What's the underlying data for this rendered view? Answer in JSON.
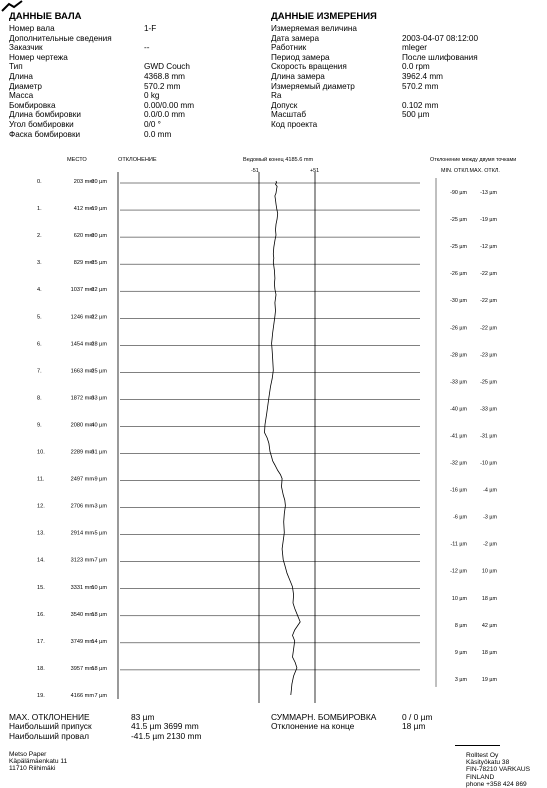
{
  "roll_data": {
    "title": "ДАННЫЕ ВАЛА",
    "rows": [
      {
        "label": "Номер вала",
        "value": "1-F"
      },
      {
        "label": "Дополнительные сведения",
        "value": ""
      },
      {
        "label": "Заказчик",
        "value": "--"
      },
      {
        "label": "Номер чертежа",
        "value": ""
      },
      {
        "label": "Тип",
        "value": "GWD Couch"
      },
      {
        "label": "Длина",
        "value": "4368.8 mm"
      },
      {
        "label": "Диаметр",
        "value": "570.2 mm"
      },
      {
        "label": "Масса",
        "value": "0 kg"
      },
      {
        "label": "Бомбировка",
        "value": "0.00/0.00 mm"
      },
      {
        "label": "Длина бомбировки",
        "value": "0.0/0.0 mm"
      },
      {
        "label": "Угол бомбировки",
        "value": "0/0 °"
      },
      {
        "label": "Фаска бомбировки",
        "value": "0.0 mm"
      }
    ]
  },
  "measurement_data": {
    "title": "ДАННЫЕ ИЗМЕРЕНИЯ",
    "rows": [
      {
        "label": "Измеряемая величина",
        "value": ""
      },
      {
        "label": "Дата замера",
        "value": "2003-04-07 08:12:00"
      },
      {
        "label": "Работник",
        "value": "mleger"
      },
      {
        "label": "Период замера",
        "value": "После шлифования"
      },
      {
        "label": "Скорость вращения",
        "value": "0.0 rpm"
      },
      {
        "label": "Длина замера",
        "value": "3962.4 mm"
      },
      {
        "label": "Измеряемый диаметр",
        "value": "570.2 mm"
      },
      {
        "label": "Ra",
        "value": ""
      },
      {
        "label": "Допуск",
        "value": "0.102 mm"
      },
      {
        "label": "Масштаб",
        "value": "500 µm"
      },
      {
        "label": "Код проекта",
        "value": ""
      }
    ]
  },
  "table_headers": {
    "place": "МЕСТО",
    "deviation": "ОТКЛОНЕНИЕ",
    "driven_end": "Ведомый конец 4185.6 mm",
    "diff_title": "Отклонение между двумя точками",
    "diff_cols": "MIN. ОТКЛ.MAX. ОТКЛ.",
    "marker_left": "-51",
    "marker_right": "+51"
  },
  "chart_data": {
    "type": "line",
    "title": "",
    "xlabel": "",
    "ylabel": "",
    "xlim": [
      -51,
      51
    ],
    "rows": [
      {
        "n": "0.",
        "pos": "203 mm",
        "dev": "-20 µm",
        "min": "-90 µm",
        "max": "-13 µm"
      },
      {
        "n": "1.",
        "pos": "412 mm",
        "dev": "-19 µm",
        "min": "-25 µm",
        "max": "-19 µm"
      },
      {
        "n": "2.",
        "pos": "620 mm",
        "dev": "-20 µm",
        "min": "-25 µm",
        "max": "-12 µm"
      },
      {
        "n": "3.",
        "pos": "829 mm",
        "dev": "-25 µm",
        "min": "-26 µm",
        "max": "-22 µm"
      },
      {
        "n": "4.",
        "pos": "1037 mm",
        "dev": "-22 µm",
        "min": "-30 µm",
        "max": "-22 µm"
      },
      {
        "n": "5.",
        "pos": "1246 mm",
        "dev": "-22 µm",
        "min": "-26 µm",
        "max": "-22 µm"
      },
      {
        "n": "6.",
        "pos": "1454 mm",
        "dev": "-28 µm",
        "min": "-28 µm",
        "max": "-23 µm"
      },
      {
        "n": "7.",
        "pos": "1663 mm",
        "dev": "-25 µm",
        "min": "-33 µm",
        "max": "-25 µm"
      },
      {
        "n": "8.",
        "pos": "1872 mm",
        "dev": "-33 µm",
        "min": "-40 µm",
        "max": "-33 µm"
      },
      {
        "n": "9.",
        "pos": "2080 mm",
        "dev": "-40 µm",
        "min": "-41 µm",
        "max": "-31 µm"
      },
      {
        "n": "10.",
        "pos": "2289 mm",
        "dev": "-31 µm",
        "min": "-32 µm",
        "max": "-10 µm"
      },
      {
        "n": "11.",
        "pos": "2497 mm",
        "dev": "-9 µm",
        "min": "-16 µm",
        "max": "-4 µm"
      },
      {
        "n": "12.",
        "pos": "2706 mm",
        "dev": "-3 µm",
        "min": "-6 µm",
        "max": "-3 µm"
      },
      {
        "n": "13.",
        "pos": "2914 mm",
        "dev": "-5 µm",
        "min": "-11 µm",
        "max": "-2 µm"
      },
      {
        "n": "14.",
        "pos": "3123 mm",
        "dev": "-7 µm",
        "min": "-12 µm",
        "max": "10 µm"
      },
      {
        "n": "15.",
        "pos": "3331 mm",
        "dev": "10 µm",
        "min": "10 µm",
        "max": "18 µm"
      },
      {
        "n": "16.",
        "pos": "3540 mm",
        "dev": "18 µm",
        "min": "8 µm",
        "max": "42 µm"
      },
      {
        "n": "17.",
        "pos": "3749 mm",
        "dev": "14 µm",
        "min": "9 µm",
        "max": "18 µm"
      },
      {
        "n": "18.",
        "pos": "3957 mm",
        "dev": "18 µm",
        "min": "3 µm",
        "max": "19 µm"
      },
      {
        "n": "19.",
        "pos": "4166 mm",
        "dev": "7 µm",
        "min": "",
        "max": ""
      }
    ],
    "profile": [
      [
        -20,
        0
      ],
      [
        -19,
        0.06
      ],
      [
        -21,
        0.12
      ],
      [
        -18,
        0.2
      ],
      [
        -19,
        0.3
      ],
      [
        -20,
        0.45
      ],
      [
        -22,
        0.55
      ],
      [
        -21,
        0.7
      ],
      [
        -20,
        0.85
      ],
      [
        -19,
        1
      ],
      [
        -17,
        1.2
      ],
      [
        -18,
        1.4
      ],
      [
        -20,
        1.6
      ],
      [
        -21,
        1.8
      ],
      [
        -20,
        2
      ],
      [
        -22,
        2.2
      ],
      [
        -24,
        2.45
      ],
      [
        -25,
        2.7
      ],
      [
        -24,
        2.85
      ],
      [
        -25,
        3
      ],
      [
        -23,
        3.3
      ],
      [
        -22,
        3.6
      ],
      [
        -23,
        3.8
      ],
      [
        -22,
        4
      ],
      [
        -20,
        4.2
      ],
      [
        -22,
        4.5
      ],
      [
        -21,
        4.8
      ],
      [
        -22,
        5
      ],
      [
        -24,
        5.3
      ],
      [
        -26,
        5.6
      ],
      [
        -28,
        6
      ],
      [
        -27,
        6.3
      ],
      [
        -26,
        6.6
      ],
      [
        -25,
        7
      ],
      [
        -27,
        7.3
      ],
      [
        -30,
        7.6
      ],
      [
        -33,
        8
      ],
      [
        -35,
        8.3
      ],
      [
        -37,
        8.6
      ],
      [
        -40,
        9
      ],
      [
        -41,
        9.3
      ],
      [
        -36,
        9.5
      ],
      [
        -33,
        9.7
      ],
      [
        -31,
        10
      ],
      [
        -28,
        10.2
      ],
      [
        -26,
        10.35
      ],
      [
        -22,
        10.5
      ],
      [
        -17,
        10.7
      ],
      [
        -12,
        10.85
      ],
      [
        -9,
        11
      ],
      [
        -10,
        11.3
      ],
      [
        -7,
        11.6
      ],
      [
        -4,
        11.8
      ],
      [
        -3,
        12
      ],
      [
        -5,
        12.3
      ],
      [
        -6,
        12.6
      ],
      [
        -5,
        13
      ],
      [
        -7,
        13.3
      ],
      [
        -9,
        13.6
      ],
      [
        -7,
        14
      ],
      [
        -4,
        14.2
      ],
      [
        0,
        14.5
      ],
      [
        4,
        14.7
      ],
      [
        8,
        14.9
      ],
      [
        10,
        15
      ],
      [
        12,
        15.3
      ],
      [
        11,
        15.6
      ],
      [
        14,
        15.8
      ],
      [
        18,
        16
      ],
      [
        24,
        16.3
      ],
      [
        14,
        16.6
      ],
      [
        10,
        16.8
      ],
      [
        14,
        17
      ],
      [
        12,
        17.3
      ],
      [
        10,
        17.6
      ],
      [
        15,
        17.8
      ],
      [
        18,
        18
      ],
      [
        12,
        18.3
      ],
      [
        9,
        18.6
      ],
      [
        8,
        18.8
      ],
      [
        7,
        19
      ]
    ]
  },
  "summary": {
    "max_dev_label": "MAX. ОТКЛОНЕНИЕ",
    "max_dev_value": "83 µm",
    "max_allow_label": "Наибольший припуск",
    "max_allow_value": "41.5 µm 3699 mm",
    "max_dip_label": "Наибольший провал",
    "max_dip_value": "-41.5 µm 2130 mm",
    "crown_sum_label": "СУММАРН. БОМБИРОВКА",
    "crown_sum_value": "0 / 0 µm",
    "end_dev_label": "Отклонение на конце",
    "end_dev_value": "18 µm"
  },
  "footer": {
    "left": [
      "Metso Paper",
      "Käpälämäenkatu 11",
      "11710 Riihimäki"
    ],
    "right": [
      "Rolltest Oy",
      "Käsityökatu 38",
      "FIN-78210 VARKAUS",
      "FINLAND",
      "phone +358 424 869"
    ]
  }
}
